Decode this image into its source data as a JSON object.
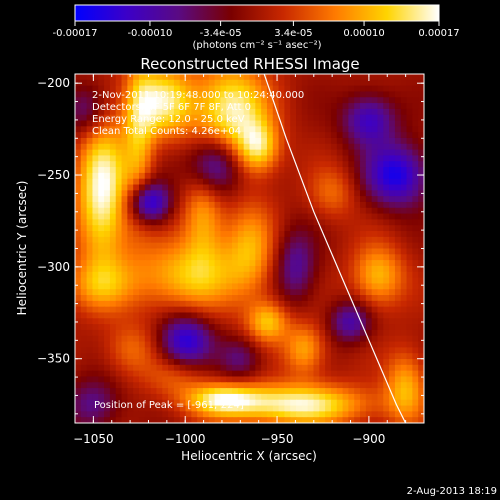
{
  "colorbar": {
    "tick_labels": [
      "-0.00017",
      "-0.00010",
      "-3.4e-05",
      "3.4e-05",
      "0.00010",
      "0.00017"
    ],
    "tick_values": [
      -0.00017,
      -0.0001,
      -3.4e-05,
      3.4e-05,
      0.0001,
      0.00017
    ],
    "range": [
      -0.00017,
      0.00017
    ],
    "units_label": "(photons cm⁻² s⁻¹ asec⁻²)",
    "colors": [
      "#0000ff",
      "#3c00c8",
      "#5a0a82",
      "#7a0000",
      "#c82800",
      "#ff7a00",
      "#ffd400",
      "#ffffff"
    ]
  },
  "chart_data": {
    "type": "heatmap",
    "title": "Reconstructed RHESSI Image",
    "xlabel": "Heliocentric X (arcsec)",
    "ylabel": "Heliocentric Y (arcsec)",
    "xlim": [
      -1060,
      -870
    ],
    "ylim": [
      -385,
      -195
    ],
    "x_ticks": [
      -1050,
      -1000,
      -950,
      -900
    ],
    "x_tick_labels": [
      "−1050",
      "−1000",
      "−950",
      "−900"
    ],
    "y_ticks": [
      -350,
      -300,
      -250,
      -200
    ],
    "y_tick_labels": [
      "−350",
      "−300",
      "−250",
      "−200"
    ],
    "annotations": [
      "2-Nov-2011 10:19:48.000 to 10:24:40.000",
      "Detectors: 4F 5F 6F 7F 8F, Att 0",
      "Energy Range: 12.0 - 25.0 keV",
      "Clean    Total Counts: 4.26e+04"
    ],
    "peak_label": "Position of Peak = [-961,-224]",
    "peak": [
      -961,
      -224
    ],
    "limb_curve": [
      [
        -957,
        -195
      ],
      [
        -945,
        -230
      ],
      [
        -930,
        -270
      ],
      [
        -915,
        -305
      ],
      [
        -900,
        -340
      ],
      [
        -885,
        -375
      ],
      [
        -880,
        -385
      ]
    ],
    "blobs": [
      {
        "x": -1045,
        "y": -260,
        "sx": 10,
        "sy": 28,
        "v": 0.00017
      },
      {
        "x": -1012,
        "y": -210,
        "sx": 12,
        "sy": 14,
        "v": 0.00014
      },
      {
        "x": -975,
        "y": -215,
        "sx": 14,
        "sy": 18,
        "v": 0.00016
      },
      {
        "x": -960,
        "y": -235,
        "sx": 8,
        "sy": 10,
        "v": 0.00012
      },
      {
        "x": -1000,
        "y": -305,
        "sx": 22,
        "sy": 14,
        "v": 0.00011
      },
      {
        "x": -990,
        "y": -270,
        "sx": 8,
        "sy": 20,
        "v": 0.0001
      },
      {
        "x": -1048,
        "y": -310,
        "sx": 14,
        "sy": 10,
        "v": 7e-05
      },
      {
        "x": -1025,
        "y": -230,
        "sx": 6,
        "sy": 30,
        "v": 9e-05
      },
      {
        "x": -965,
        "y": -290,
        "sx": 10,
        "sy": 18,
        "v": 9e-05
      },
      {
        "x": -955,
        "y": -330,
        "sx": 8,
        "sy": 8,
        "v": 0.00011
      },
      {
        "x": -935,
        "y": -345,
        "sx": 8,
        "sy": 10,
        "v": 0.0001
      },
      {
        "x": -895,
        "y": -305,
        "sx": 10,
        "sy": 12,
        "v": 0.00011
      },
      {
        "x": -920,
        "y": -260,
        "sx": 9,
        "sy": 10,
        "v": 6e-05
      },
      {
        "x": -940,
        "y": -375,
        "sx": 28,
        "sy": 8,
        "v": 0.00016
      },
      {
        "x": -980,
        "y": -372,
        "sx": 14,
        "sy": 6,
        "v": 0.00012
      },
      {
        "x": -1005,
        "y": -360,
        "sx": 12,
        "sy": 8,
        "v": 5e-05
      },
      {
        "x": -880,
        "y": -365,
        "sx": 8,
        "sy": 14,
        "v": 0.0001
      },
      {
        "x": -1030,
        "y": -345,
        "sx": 10,
        "sy": 10,
        "v": 6e-05
      },
      {
        "x": -1020,
        "y": -265,
        "sx": 8,
        "sy": 8,
        "v": -0.00016
      },
      {
        "x": -985,
        "y": -245,
        "sx": 10,
        "sy": 12,
        "v": -0.00015
      },
      {
        "x": -1000,
        "y": -340,
        "sx": 10,
        "sy": 10,
        "v": -0.00014
      },
      {
        "x": -885,
        "y": -250,
        "sx": 12,
        "sy": 12,
        "v": -0.00015
      },
      {
        "x": -900,
        "y": -220,
        "sx": 10,
        "sy": 10,
        "v": -0.00012
      },
      {
        "x": -940,
        "y": -300,
        "sx": 8,
        "sy": 14,
        "v": -9e-05
      },
      {
        "x": -1050,
        "y": -375,
        "sx": 10,
        "sy": 10,
        "v": -8e-05
      },
      {
        "x": -1055,
        "y": -215,
        "sx": 8,
        "sy": 10,
        "v": -8e-05
      },
      {
        "x": -910,
        "y": -330,
        "sx": 8,
        "sy": 8,
        "v": -0.0001
      },
      {
        "x": -970,
        "y": -350,
        "sx": 8,
        "sy": 8,
        "v": -7e-05
      }
    ]
  },
  "footer": {
    "timestamp": "2-Aug-2013 18:19"
  }
}
